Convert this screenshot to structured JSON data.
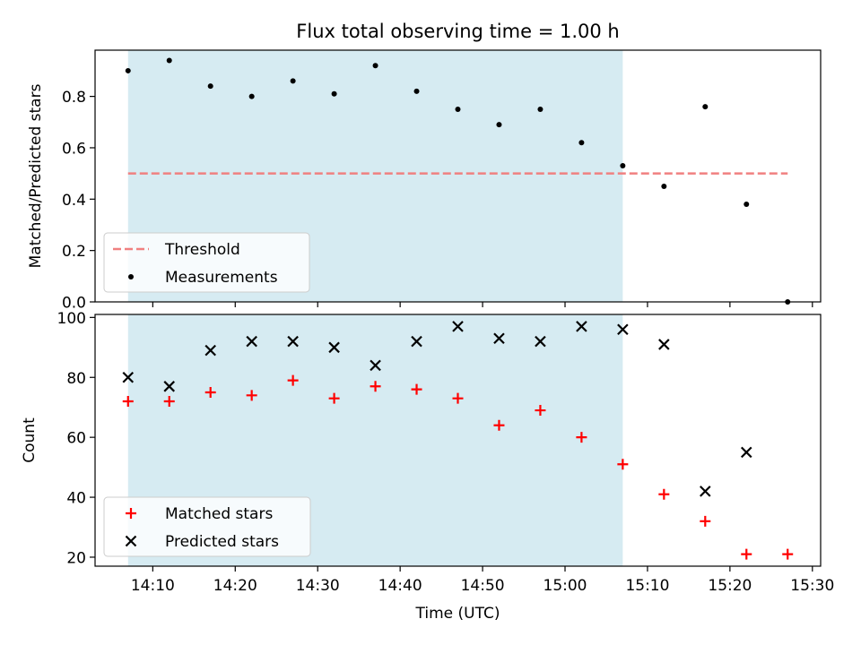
{
  "title": "Flux total observing time = 1.00 h",
  "colors": {
    "shade": "#add8e6",
    "threshold": "#f08080",
    "measurement": "#000000",
    "matched": "#ff0000",
    "predicted": "#000000"
  },
  "chart_data": [
    {
      "type": "scatter",
      "ylabel": "Matched/Predicted stars",
      "xlabel": "",
      "ylim": [
        0,
        0.98
      ],
      "xlim": [
        "14:03",
        "15:31"
      ],
      "yticks": [
        "0.0",
        "0.2",
        "0.4",
        "0.6",
        "0.8"
      ],
      "shaded_span": [
        "14:07",
        "15:07"
      ],
      "threshold": {
        "name": "Threshold",
        "x": [
          "14:07",
          "15:27"
        ],
        "value": 0.5
      },
      "series": [
        {
          "name": "Measurements",
          "x": [
            "14:07",
            "14:12",
            "14:17",
            "14:22",
            "14:27",
            "14:32",
            "14:37",
            "14:42",
            "14:47",
            "14:52",
            "14:57",
            "15:02",
            "15:07",
            "15:12",
            "15:17",
            "15:22",
            "15:27"
          ],
          "values": [
            0.9,
            0.94,
            0.84,
            0.8,
            0.86,
            0.81,
            0.92,
            0.82,
            0.75,
            0.69,
            0.75,
            0.62,
            0.53,
            0.45,
            0.76,
            0.38,
            0.0
          ]
        }
      ],
      "legend": "lower-left",
      "grid": false
    },
    {
      "type": "scatter",
      "ylabel": "Count",
      "xlabel": "Time (UTC)",
      "ylim": [
        17,
        101
      ],
      "xlim": [
        "14:03",
        "15:31"
      ],
      "yticks": [
        "20",
        "40",
        "60",
        "80",
        "100"
      ],
      "xticks": [
        "14:10",
        "14:20",
        "14:30",
        "14:40",
        "14:50",
        "15:00",
        "15:10",
        "15:20",
        "15:30"
      ],
      "shaded_span": [
        "14:07",
        "15:07"
      ],
      "series": [
        {
          "name": "Matched stars",
          "x": [
            "14:07",
            "14:12",
            "14:17",
            "14:22",
            "14:27",
            "14:32",
            "14:37",
            "14:42",
            "14:47",
            "14:52",
            "14:57",
            "15:02",
            "15:07",
            "15:12",
            "15:17",
            "15:22",
            "15:27"
          ],
          "values": [
            72,
            72,
            75,
            74,
            79,
            73,
            77,
            76,
            73,
            64,
            69,
            60,
            51,
            41,
            32,
            21,
            21
          ]
        },
        {
          "name": "Predicted stars",
          "x": [
            "14:07",
            "14:12",
            "14:17",
            "14:22",
            "14:27",
            "14:32",
            "14:37",
            "14:42",
            "14:47",
            "14:52",
            "14:57",
            "15:02",
            "15:07",
            "15:12",
            "15:17",
            "15:22"
          ],
          "values": [
            80,
            77,
            89,
            92,
            92,
            90,
            84,
            92,
            97,
            93,
            92,
            97,
            96,
            91,
            42,
            55
          ]
        }
      ],
      "legend": "lower-left",
      "grid": false
    }
  ]
}
